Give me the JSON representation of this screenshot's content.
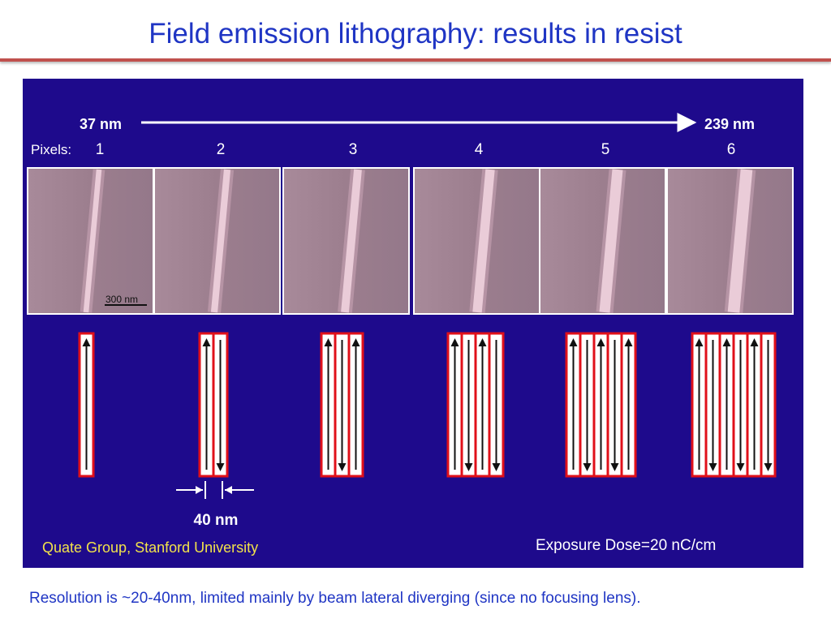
{
  "slide": {
    "title": "Field emission lithography: results in resist",
    "caption": "Resolution is ~20-40nm, limited mainly by beam lateral diverging (since no focusing lens)."
  },
  "figure": {
    "range_start": "37 nm",
    "range_end": "239 nm",
    "pixels_label": "Pixels:",
    "pixel_numbers": [
      "1",
      "2",
      "3",
      "4",
      "5",
      "6"
    ],
    "scale_bar": "300 nm",
    "line_width": "40 nm",
    "credit": "Quate Group, Stanford University",
    "dose": "Exposure Dose=20 nC/cm",
    "pixel_counts": [
      1,
      2,
      3,
      4,
      5,
      6
    ]
  },
  "colors": {
    "title": "#1f35c4",
    "rule": "#c0504d",
    "figure_bg": "#1e0a8c",
    "yellow_text": "#f2e24a",
    "pixel_outline": "#e0101a"
  }
}
